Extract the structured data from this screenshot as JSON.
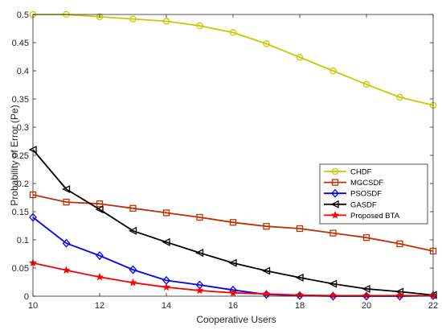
{
  "chart_data": {
    "type": "line",
    "title": "",
    "xlabel": "Cooperative Users",
    "ylabel": "Probability of Error (Pe)",
    "xlim": [
      10,
      22
    ],
    "ylim": [
      0,
      0.5
    ],
    "xticks": [
      "10",
      "12",
      "14",
      "16",
      "18",
      "20",
      "22"
    ],
    "yticks": [
      "0",
      "0.05",
      "0.1",
      "0.15",
      "0.2",
      "0.25",
      "0.3",
      "0.35",
      "0.4",
      "0.45",
      "0.5"
    ],
    "x": [
      10,
      11,
      12,
      13,
      14,
      15,
      16,
      17,
      18,
      19,
      20,
      21,
      22
    ],
    "grid": false,
    "legend_position": "right-middle",
    "series": [
      {
        "name": "CHDF",
        "color": "#c8c800",
        "marker": "circle",
        "values": [
          0.5,
          0.5,
          0.496,
          0.492,
          0.488,
          0.48,
          0.468,
          0.448,
          0.424,
          0.4,
          0.376,
          0.353,
          0.339
        ]
      },
      {
        "name": "MGCSDF",
        "color": "#c03000",
        "marker": "square",
        "values": [
          0.18,
          0.167,
          0.164,
          0.156,
          0.148,
          0.14,
          0.131,
          0.124,
          0.12,
          0.112,
          0.104,
          0.093,
          0.08
        ]
      },
      {
        "name": "PSOSDF",
        "color": "#0000ff",
        "marker": "diamond",
        "values": [
          0.14,
          0.094,
          0.072,
          0.047,
          0.028,
          0.02,
          0.011,
          0.003,
          0.001,
          0.0,
          0.0,
          0.0,
          0.001
        ]
      },
      {
        "name": "GASDF",
        "color": "#000000",
        "marker": "triangle-left",
        "values": [
          0.26,
          0.19,
          0.154,
          0.116,
          0.096,
          0.077,
          0.059,
          0.045,
          0.033,
          0.022,
          0.013,
          0.008,
          0.002
        ]
      },
      {
        "name": "Proposed BTA",
        "color": "#ff0000",
        "marker": "star",
        "values": [
          0.059,
          0.046,
          0.034,
          0.024,
          0.016,
          0.01,
          0.006,
          0.004,
          0.002,
          0.001,
          0.001,
          0.001,
          0.001
        ]
      }
    ]
  }
}
